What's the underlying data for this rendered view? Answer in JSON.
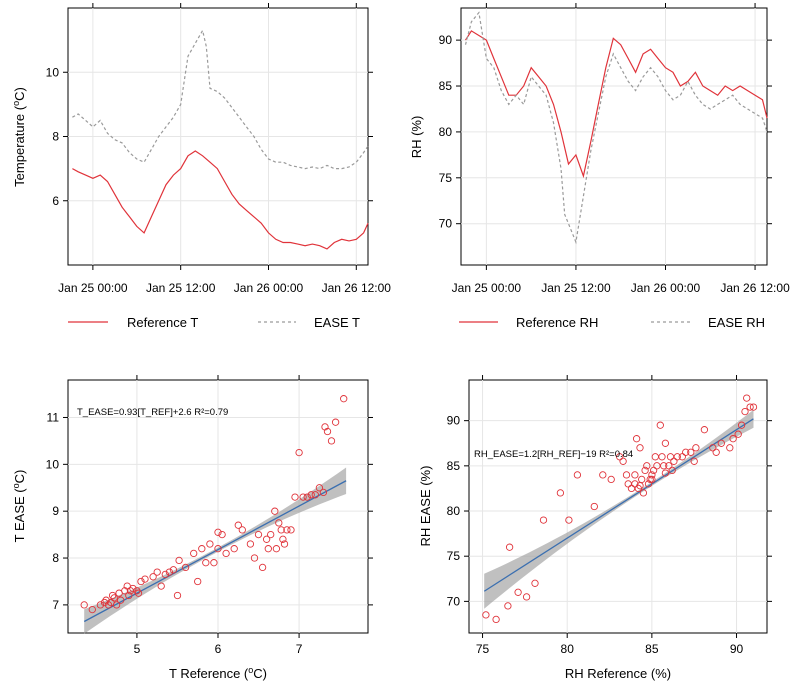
{
  "colors": {
    "reference": "#e0333a",
    "ease": "#9a9a9a",
    "fit": "#3b6fb0",
    "band": "#9e9e9e",
    "grid": "#e6e6e6"
  },
  "chart_data": [
    {
      "type": "line",
      "title": "",
      "xlabel": "",
      "ylabel": "Temperature (°C)",
      "ylabel_parts": [
        "Temperature (",
        "o",
        "C)"
      ],
      "xlim_hours": [
        -3.4,
        37.6
      ],
      "ylim": [
        4.0,
        12.0
      ],
      "xtick_hours": [
        0,
        12,
        24,
        36
      ],
      "xtick_labels": [
        "Jan 25 00:00",
        "Jan 25 12:00",
        "Jan 26 00:00",
        "Jan 26 12:00"
      ],
      "yticks": [
        6,
        8,
        10
      ],
      "legend": [
        {
          "label": "Reference T",
          "style": "solid"
        },
        {
          "label": "EASE T",
          "style": "dashed"
        }
      ],
      "series": [
        {
          "name": "Reference T",
          "x_hours": [
            -2.8,
            -2,
            -1,
            0,
            1,
            2,
            3,
            4,
            5,
            6,
            7,
            8,
            9,
            10,
            11,
            12,
            13,
            14,
            15,
            16,
            17,
            18,
            19,
            20,
            21,
            22,
            23,
            24,
            25,
            26,
            27,
            28,
            29,
            30,
            31,
            32,
            33,
            34,
            35,
            36,
            37,
            37.6
          ],
          "values": [
            7.0,
            6.9,
            6.8,
            6.7,
            6.8,
            6.6,
            6.2,
            5.8,
            5.5,
            5.2,
            5.0,
            5.5,
            6.0,
            6.5,
            6.8,
            7.0,
            7.4,
            7.55,
            7.4,
            7.2,
            7.0,
            6.6,
            6.2,
            5.9,
            5.7,
            5.5,
            5.3,
            5.0,
            4.8,
            4.7,
            4.7,
            4.65,
            4.6,
            4.65,
            4.6,
            4.5,
            4.7,
            4.8,
            4.75,
            4.8,
            5.0,
            5.3
          ]
        },
        {
          "name": "EASE T",
          "x_hours": [
            -2.8,
            -2,
            -1,
            0,
            1,
            2,
            3,
            4,
            5,
            6,
            7,
            8,
            9,
            10,
            11,
            12,
            13,
            14,
            15,
            15.5,
            16,
            17,
            18,
            19,
            20,
            21,
            22,
            23,
            24,
            25,
            26,
            27,
            28,
            29,
            30,
            31,
            32,
            33,
            34,
            35,
            36,
            37,
            37.6
          ],
          "values": [
            8.6,
            8.7,
            8.5,
            8.3,
            8.5,
            8.1,
            7.9,
            7.8,
            7.5,
            7.3,
            7.2,
            7.6,
            8.0,
            8.3,
            8.6,
            9.0,
            10.5,
            10.9,
            11.3,
            10.8,
            9.5,
            9.4,
            9.2,
            8.9,
            8.6,
            8.3,
            8.0,
            7.6,
            7.3,
            7.2,
            7.2,
            7.1,
            7.05,
            7.0,
            7.05,
            7.0,
            7.1,
            7.0,
            7.0,
            7.05,
            7.2,
            7.5,
            7.7
          ]
        }
      ]
    },
    {
      "type": "line",
      "title": "",
      "xlabel": "",
      "ylabel": "RH (%)",
      "xlim_hours": [
        -3.4,
        37.6
      ],
      "ylim": [
        65.5,
        93.5
      ],
      "xtick_hours": [
        0,
        12,
        24,
        36
      ],
      "xtick_labels": [
        "Jan 25 00:00",
        "Jan 25 12:00",
        "Jan 26 00:00",
        "Jan 26 12:00"
      ],
      "yticks": [
        70,
        75,
        80,
        85,
        90
      ],
      "legend": [
        {
          "label": "Reference RH",
          "style": "solid"
        },
        {
          "label": "EASE RH",
          "style": "dashed"
        }
      ],
      "series": [
        {
          "name": "Reference RH",
          "x_hours": [
            -2.8,
            -2,
            -1,
            0,
            1,
            2,
            3,
            4,
            5,
            6,
            7,
            8,
            9,
            10,
            11,
            12,
            13,
            14,
            15,
            16,
            17,
            18,
            19,
            20,
            21,
            22,
            23,
            24,
            25,
            26,
            27,
            28,
            29,
            30,
            31,
            32,
            33,
            34,
            35,
            36,
            37,
            37.6
          ],
          "values": [
            90.0,
            91.0,
            90.5,
            90.0,
            88.0,
            86.0,
            84.0,
            84.0,
            85.0,
            87.0,
            86.0,
            85.0,
            83.0,
            80.0,
            76.5,
            77.5,
            75.2,
            79.0,
            83.0,
            87.0,
            90.2,
            89.5,
            88.0,
            86.5,
            88.5,
            89.0,
            88.0,
            87.0,
            86.5,
            85.0,
            85.5,
            86.5,
            85.0,
            84.5,
            84.0,
            85.0,
            84.5,
            85.0,
            84.5,
            84.0,
            83.5,
            81.5
          ]
        },
        {
          "name": "EASE RH",
          "x_hours": [
            -2.8,
            -2,
            -1,
            0,
            1,
            2,
            3,
            4,
            5,
            6,
            7,
            8,
            9,
            10,
            10.5,
            11,
            12,
            13,
            14,
            15,
            16,
            17,
            18,
            19,
            20,
            21,
            22,
            23,
            24,
            25,
            26,
            27,
            28,
            29,
            30,
            31,
            32,
            33,
            34,
            35,
            36,
            37,
            37.6
          ],
          "values": [
            89.5,
            92.0,
            93.0,
            88.0,
            87.0,
            84.5,
            83.0,
            84.0,
            83.0,
            86.0,
            85.0,
            84.0,
            81.0,
            76.0,
            71.0,
            70.0,
            68.0,
            73.0,
            78.0,
            82.0,
            86.0,
            88.5,
            87.0,
            85.5,
            84.5,
            86.0,
            87.0,
            86.0,
            84.5,
            83.5,
            84.0,
            85.5,
            84.0,
            83.0,
            82.5,
            83.0,
            83.5,
            84.0,
            83.0,
            82.5,
            82.0,
            81.5,
            80.0
          ]
        }
      ]
    },
    {
      "type": "scatter",
      "title": "",
      "xlabel": "T Reference (°C)",
      "xlabel_parts": [
        "T Reference (",
        "o",
        "C)"
      ],
      "ylabel": "T EASE (°C)",
      "ylabel_parts": [
        "T EASE (",
        "o",
        "C)"
      ],
      "xlim": [
        4.15,
        7.85
      ],
      "ylim": [
        6.4,
        11.8
      ],
      "xticks": [
        5,
        6,
        7
      ],
      "yticks": [
        7,
        8,
        9,
        10,
        11
      ],
      "annotation": "T_EASE=0.93[T_REF]+2.6 R²=0.79",
      "fit": {
        "slope": 0.93,
        "intercept": 2.6,
        "x_range": [
          4.35,
          7.58
        ]
      },
      "x": [
        4.35,
        4.45,
        4.55,
        4.6,
        4.62,
        4.65,
        4.7,
        4.72,
        4.75,
        4.8,
        4.85,
        4.88,
        4.9,
        4.92,
        4.95,
        5.0,
        5.05,
        5.1,
        5.2,
        5.25,
        5.3,
        5.35,
        5.4,
        5.5,
        5.52,
        5.6,
        5.7,
        5.75,
        5.8,
        5.85,
        5.9,
        5.95,
        6.0,
        6.05,
        6.1,
        6.2,
        6.25,
        6.3,
        6.4,
        6.45,
        6.5,
        6.55,
        6.6,
        6.62,
        6.65,
        6.7,
        6.72,
        6.75,
        6.78,
        6.8,
        6.82,
        6.85,
        6.9,
        6.95,
        7.0,
        7.05,
        7.1,
        7.15,
        7.2,
        7.25,
        7.3,
        7.32,
        7.35,
        7.4,
        7.45,
        7.55,
        4.68,
        4.78,
        5.02,
        5.45,
        6.0
      ],
      "y": [
        7.0,
        6.9,
        7.0,
        7.05,
        7.1,
        7.0,
        7.2,
        7.15,
        7.0,
        7.1,
        7.3,
        7.4,
        7.2,
        7.3,
        7.35,
        7.3,
        7.5,
        7.55,
        7.6,
        7.7,
        7.4,
        7.65,
        7.7,
        7.2,
        7.95,
        7.8,
        8.1,
        7.5,
        8.2,
        7.9,
        8.3,
        7.9,
        8.2,
        8.5,
        8.1,
        8.2,
        8.7,
        8.6,
        8.3,
        8.0,
        8.5,
        7.8,
        8.4,
        8.2,
        8.5,
        9.0,
        8.2,
        8.75,
        8.6,
        8.4,
        8.3,
        8.6,
        8.6,
        9.3,
        10.25,
        9.3,
        9.3,
        9.35,
        9.35,
        9.5,
        9.4,
        10.8,
        10.7,
        10.5,
        10.9,
        11.4,
        7.05,
        7.25,
        7.25,
        7.75,
        8.55
      ]
    },
    {
      "type": "scatter",
      "title": "",
      "xlabel": "RH Reference (%)",
      "ylabel": "RH EASE (%)",
      "xlim": [
        74.2,
        91.8
      ],
      "ylim": [
        66.5,
        94.5
      ],
      "xticks": [
        75,
        80,
        85,
        90
      ],
      "yticks": [
        70,
        75,
        80,
        85,
        90
      ],
      "annotation": "RH_EASE=1.2[RH_REF]−19 R²=0.84",
      "fit": {
        "slope": 1.2,
        "intercept": -19,
        "x_range": [
          75.1,
          91.0
        ]
      },
      "x": [
        75.2,
        75.8,
        76.5,
        76.6,
        77.1,
        77.6,
        78.1,
        78.6,
        79.6,
        80.1,
        80.6,
        81.6,
        82.1,
        82.6,
        83.1,
        83.3,
        83.6,
        83.8,
        84.0,
        84.1,
        84.2,
        84.3,
        84.4,
        84.5,
        84.6,
        84.7,
        84.8,
        84.9,
        85.0,
        85.1,
        85.2,
        85.3,
        85.5,
        85.6,
        85.7,
        85.8,
        86.0,
        86.1,
        86.3,
        86.5,
        86.8,
        87.0,
        87.3,
        87.6,
        88.1,
        88.6,
        89.1,
        89.6,
        90.1,
        90.3,
        90.5,
        90.6,
        90.8,
        91.0,
        83.5,
        84.0,
        85.0,
        86.2,
        87.5,
        88.8,
        89.8,
        84.3,
        85.8
      ],
      "y": [
        68.5,
        68.0,
        69.5,
        76.0,
        71.0,
        70.5,
        72.0,
        79.0,
        82.0,
        79.0,
        84.0,
        80.5,
        84.0,
        83.5,
        86.0,
        85.5,
        83.0,
        82.5,
        84.0,
        88.0,
        82.5,
        87.0,
        83.5,
        82.0,
        84.5,
        85.0,
        83.0,
        83.5,
        84.0,
        84.5,
        86.0,
        85.0,
        89.5,
        86.0,
        85.0,
        87.5,
        85.0,
        86.0,
        85.5,
        86.0,
        86.0,
        86.5,
        86.5,
        87.0,
        89.0,
        87.0,
        87.5,
        87.0,
        88.5,
        89.5,
        91.0,
        92.5,
        91.5,
        91.5,
        84.0,
        83.0,
        83.5,
        84.5,
        85.5,
        86.5,
        88.0,
        82.8,
        84.2
      ]
    }
  ]
}
